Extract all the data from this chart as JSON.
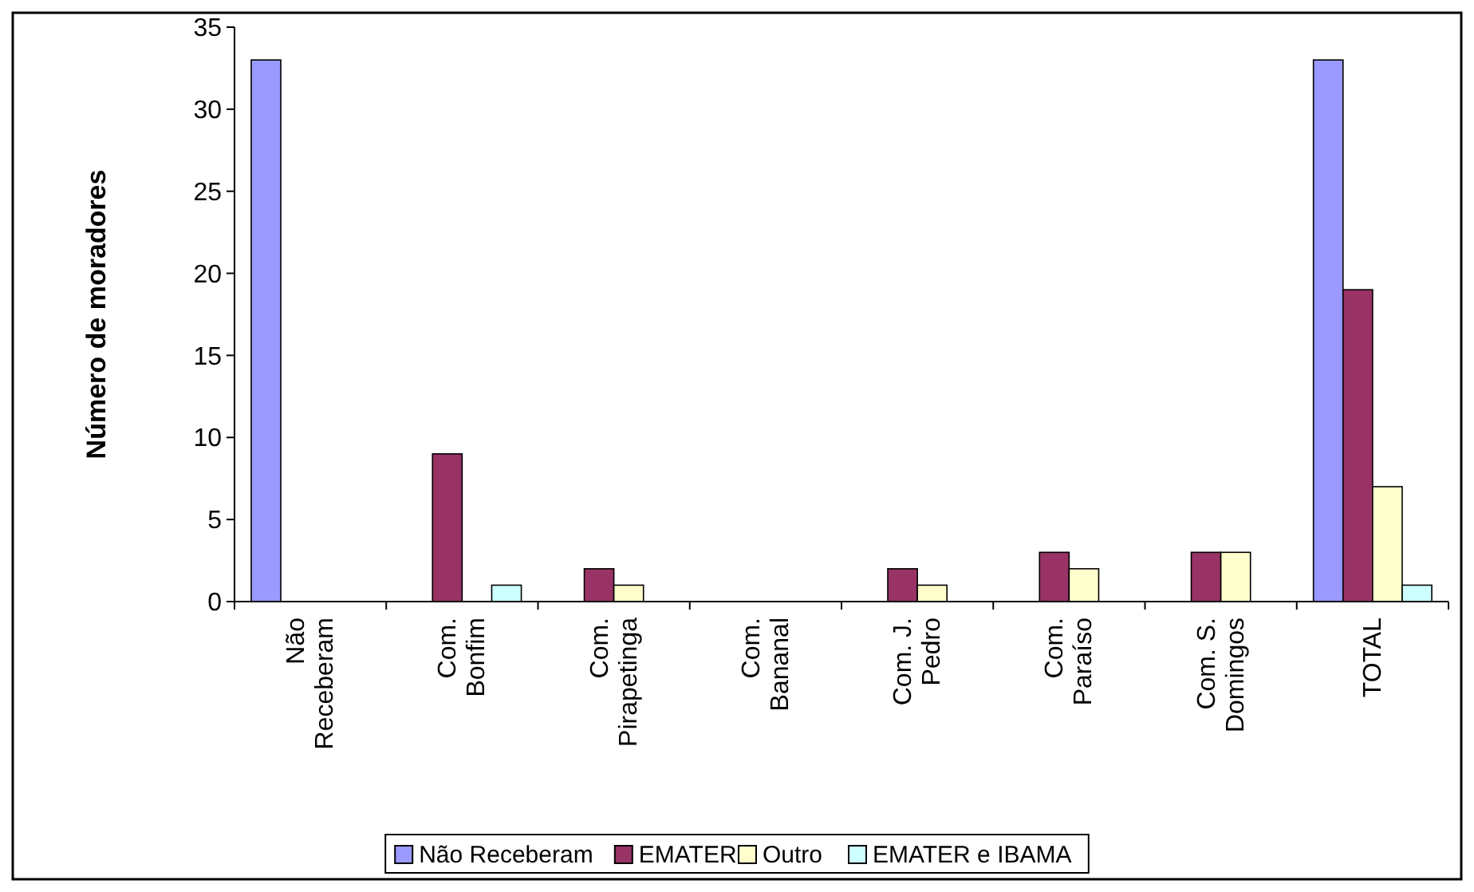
{
  "chart_data": {
    "type": "bar",
    "ylabel": "Número de moradores",
    "categories": [
      "Não Receberam",
      "Com. Bonfim",
      "Com. Pirapetinga",
      "Com. Bananal",
      "Com. J. Pedro",
      "Com. Paraíso",
      "Com. S. Domingos",
      "TOTAL"
    ],
    "series": [
      {
        "name": "Não Receberam",
        "color": "#9999ff",
        "values": [
          33,
          0,
          0,
          0,
          0,
          0,
          0,
          33
        ]
      },
      {
        "name": "EMATER",
        "color": "#993366",
        "values": [
          0,
          9,
          2,
          0,
          2,
          3,
          3,
          19
        ]
      },
      {
        "name": "Outro",
        "color": "#ffffcc",
        "values": [
          0,
          0,
          1,
          0,
          1,
          2,
          3,
          7
        ]
      },
      {
        "name": "EMATER e IBAMA",
        "color": "#ccffff",
        "values": [
          0,
          1,
          0,
          0,
          0,
          0,
          0,
          1
        ]
      }
    ],
    "ylim": [
      0,
      35
    ],
    "yticks": [
      0,
      5,
      10,
      15,
      20,
      25,
      30,
      35
    ],
    "grid": false,
    "legend": "bottom"
  }
}
